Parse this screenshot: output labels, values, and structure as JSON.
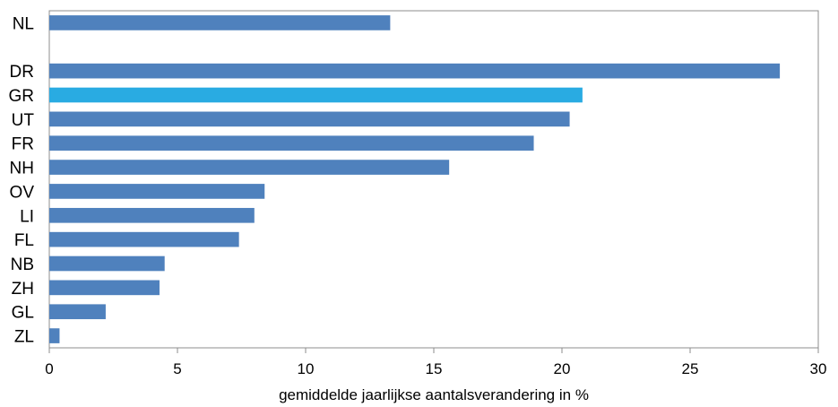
{
  "chart_data": {
    "type": "bar",
    "orientation": "horizontal",
    "categories": [
      "NL",
      "",
      "DR",
      "GR",
      "UT",
      "FR",
      "NH",
      "OV",
      "LI",
      "FL",
      "NB",
      "ZH",
      "GL",
      "ZL"
    ],
    "values": [
      13.3,
      null,
      28.5,
      20.8,
      20.3,
      18.9,
      15.6,
      8.4,
      8.0,
      7.4,
      4.5,
      4.3,
      2.2,
      0.4
    ],
    "highlight_category": "GR",
    "colors": {
      "bar": "#4f81bd",
      "highlight": "#29abe2"
    },
    "title": "",
    "xlabel": "gemiddelde jaarlijkse aantalsverandering in %",
    "ylabel": "",
    "xlim": [
      0,
      30
    ],
    "xticks": [
      0,
      5,
      10,
      15,
      20,
      25,
      30
    ],
    "grid": false,
    "legend": "none"
  }
}
